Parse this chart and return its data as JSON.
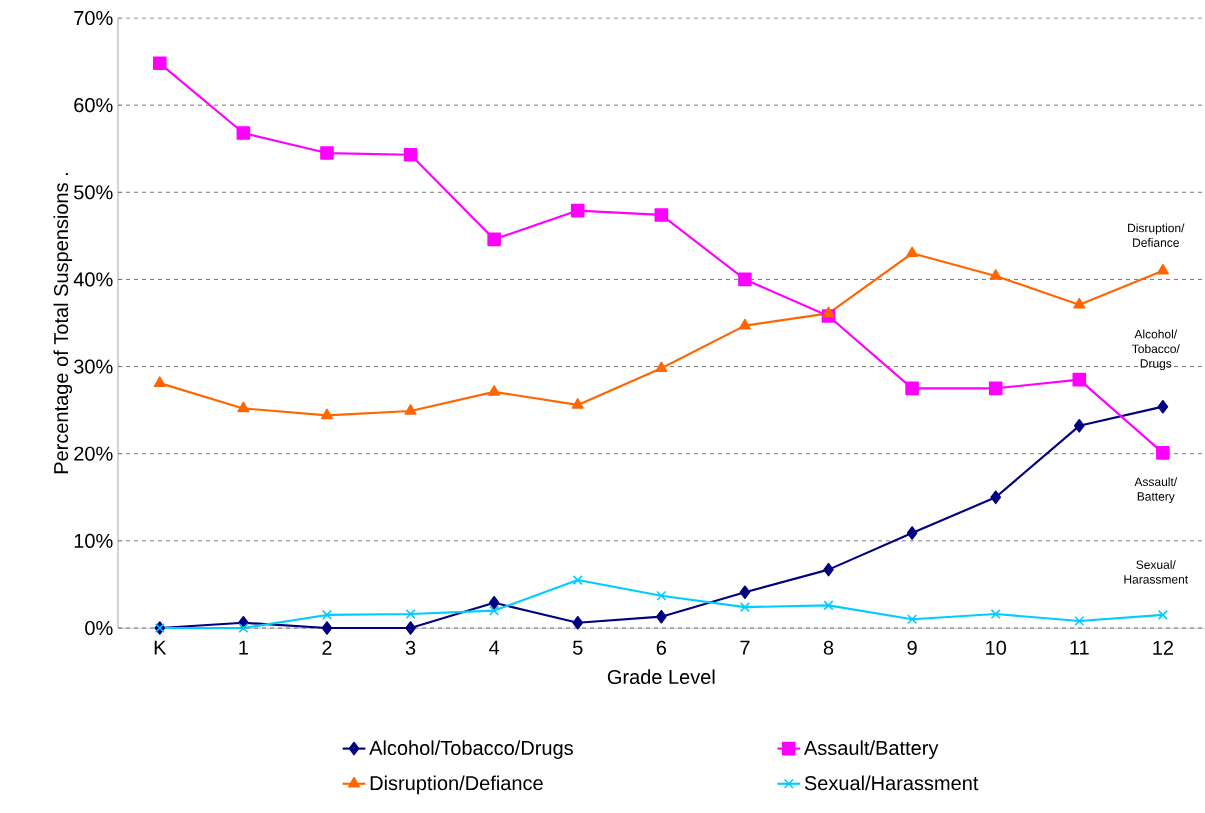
{
  "chart_data": {
    "type": "line",
    "xlabel": "Grade Level",
    "ylabel": "Percentage of Total Suspensions .",
    "categories": [
      "K",
      "1",
      "2",
      "3",
      "4",
      "5",
      "6",
      "7",
      "8",
      "9",
      "10",
      "11",
      "12"
    ],
    "series": [
      {
        "name": "Alcohol/Tobacco/Drugs",
        "color": "#000080",
        "marker": "diamond",
        "values": [
          0,
          0.6,
          0,
          0,
          2.9,
          0.6,
          1.3,
          4.1,
          6.7,
          10.9,
          15.0,
          23.2,
          25.4
        ]
      },
      {
        "name": "Assault/Battery",
        "color": "#ff00ff",
        "marker": "square",
        "values": [
          64.8,
          56.8,
          54.5,
          54.3,
          44.6,
          47.9,
          47.4,
          40.0,
          35.8,
          27.5,
          27.5,
          28.5,
          20.1
        ]
      },
      {
        "name": "Disruption/Defiance",
        "color": "#ff6600",
        "marker": "triangle",
        "values": [
          28.1,
          25.2,
          24.4,
          24.9,
          27.1,
          25.6,
          29.8,
          34.7,
          36.1,
          43.0,
          40.4,
          37.1,
          41.0
        ]
      },
      {
        "name": "Sexual/Harassment",
        "color": "#00ccff",
        "marker": "cross",
        "values": [
          0,
          0,
          1.5,
          1.6,
          2.0,
          5.5,
          3.7,
          2.4,
          2.6,
          1.0,
          1.6,
          0.8,
          1.5
        ]
      }
    ],
    "ylim": [
      0,
      70
    ],
    "yticks": [
      {
        "value": 0,
        "label": "0%"
      },
      {
        "value": 10,
        "label": "10%"
      },
      {
        "value": 20,
        "label": "20%"
      },
      {
        "value": 30,
        "label": "30%"
      },
      {
        "value": 40,
        "label": "40%"
      },
      {
        "value": 50,
        "label": "50%"
      },
      {
        "value": 60,
        "label": "60%"
      },
      {
        "value": 70,
        "label": "70%"
      }
    ],
    "grid": "y",
    "legend": "bottom",
    "line_style": "solid",
    "annotations": [
      "Disruption/ Defiance",
      "Alcohol/ Tobacco/ Drugs",
      "Assault/ Battery",
      "Sexual/ Harassment"
    ]
  }
}
